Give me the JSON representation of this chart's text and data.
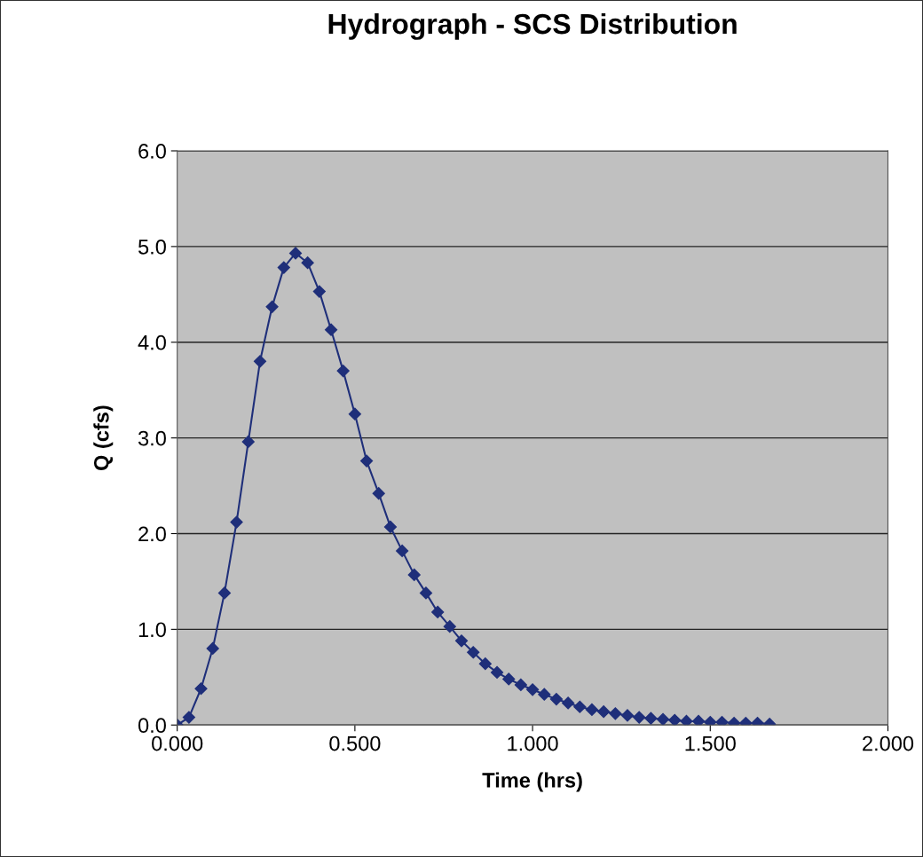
{
  "chart_data": {
    "type": "line",
    "title": "Hydrograph - SCS Distribution",
    "xlabel": "Time (hrs)",
    "ylabel": "Q (cfs)",
    "x": [
      0.0,
      0.033,
      0.067,
      0.1,
      0.133,
      0.167,
      0.2,
      0.233,
      0.267,
      0.3,
      0.333,
      0.367,
      0.4,
      0.433,
      0.467,
      0.5,
      0.533,
      0.567,
      0.6,
      0.633,
      0.667,
      0.7,
      0.733,
      0.767,
      0.8,
      0.833,
      0.867,
      0.9,
      0.933,
      0.967,
      1.0,
      1.033,
      1.067,
      1.1,
      1.133,
      1.167,
      1.2,
      1.233,
      1.267,
      1.3,
      1.333,
      1.367,
      1.4,
      1.433,
      1.467,
      1.5,
      1.533,
      1.567,
      1.6,
      1.633,
      1.667
    ],
    "series": [
      {
        "color": "#1f2f7a",
        "values": [
          0.0,
          0.08,
          0.38,
          0.8,
          1.38,
          2.12,
          2.96,
          3.8,
          4.37,
          4.78,
          4.93,
          4.83,
          4.53,
          4.13,
          3.7,
          3.25,
          2.76,
          2.42,
          2.07,
          1.82,
          1.57,
          1.38,
          1.18,
          1.03,
          0.88,
          0.76,
          0.64,
          0.55,
          0.48,
          0.42,
          0.37,
          0.32,
          0.27,
          0.23,
          0.19,
          0.16,
          0.14,
          0.12,
          0.1,
          0.08,
          0.07,
          0.06,
          0.05,
          0.04,
          0.04,
          0.03,
          0.03,
          0.02,
          0.02,
          0.02,
          0.01
        ]
      }
    ],
    "xlim": [
      0,
      2
    ],
    "xticks": [
      {
        "value": 0,
        "label": "0.000"
      },
      {
        "value": 0.5,
        "label": "0.500"
      },
      {
        "value": 1,
        "label": "1.000"
      },
      {
        "value": 1.5,
        "label": "1.500"
      },
      {
        "value": 2,
        "label": "2.000"
      }
    ],
    "ylim": [
      0,
      6
    ],
    "yticks": [
      {
        "value": 0,
        "label": "0.0"
      },
      {
        "value": 1,
        "label": "1.0"
      },
      {
        "value": 2,
        "label": "2.0"
      },
      {
        "value": 3,
        "label": "3.0"
      },
      {
        "value": 4,
        "label": "4.0"
      },
      {
        "value": 5,
        "label": "5.0"
      },
      {
        "value": 6,
        "label": "6.0"
      }
    ],
    "grid": "y",
    "marker": "diamond",
    "line_style": "solid"
  }
}
